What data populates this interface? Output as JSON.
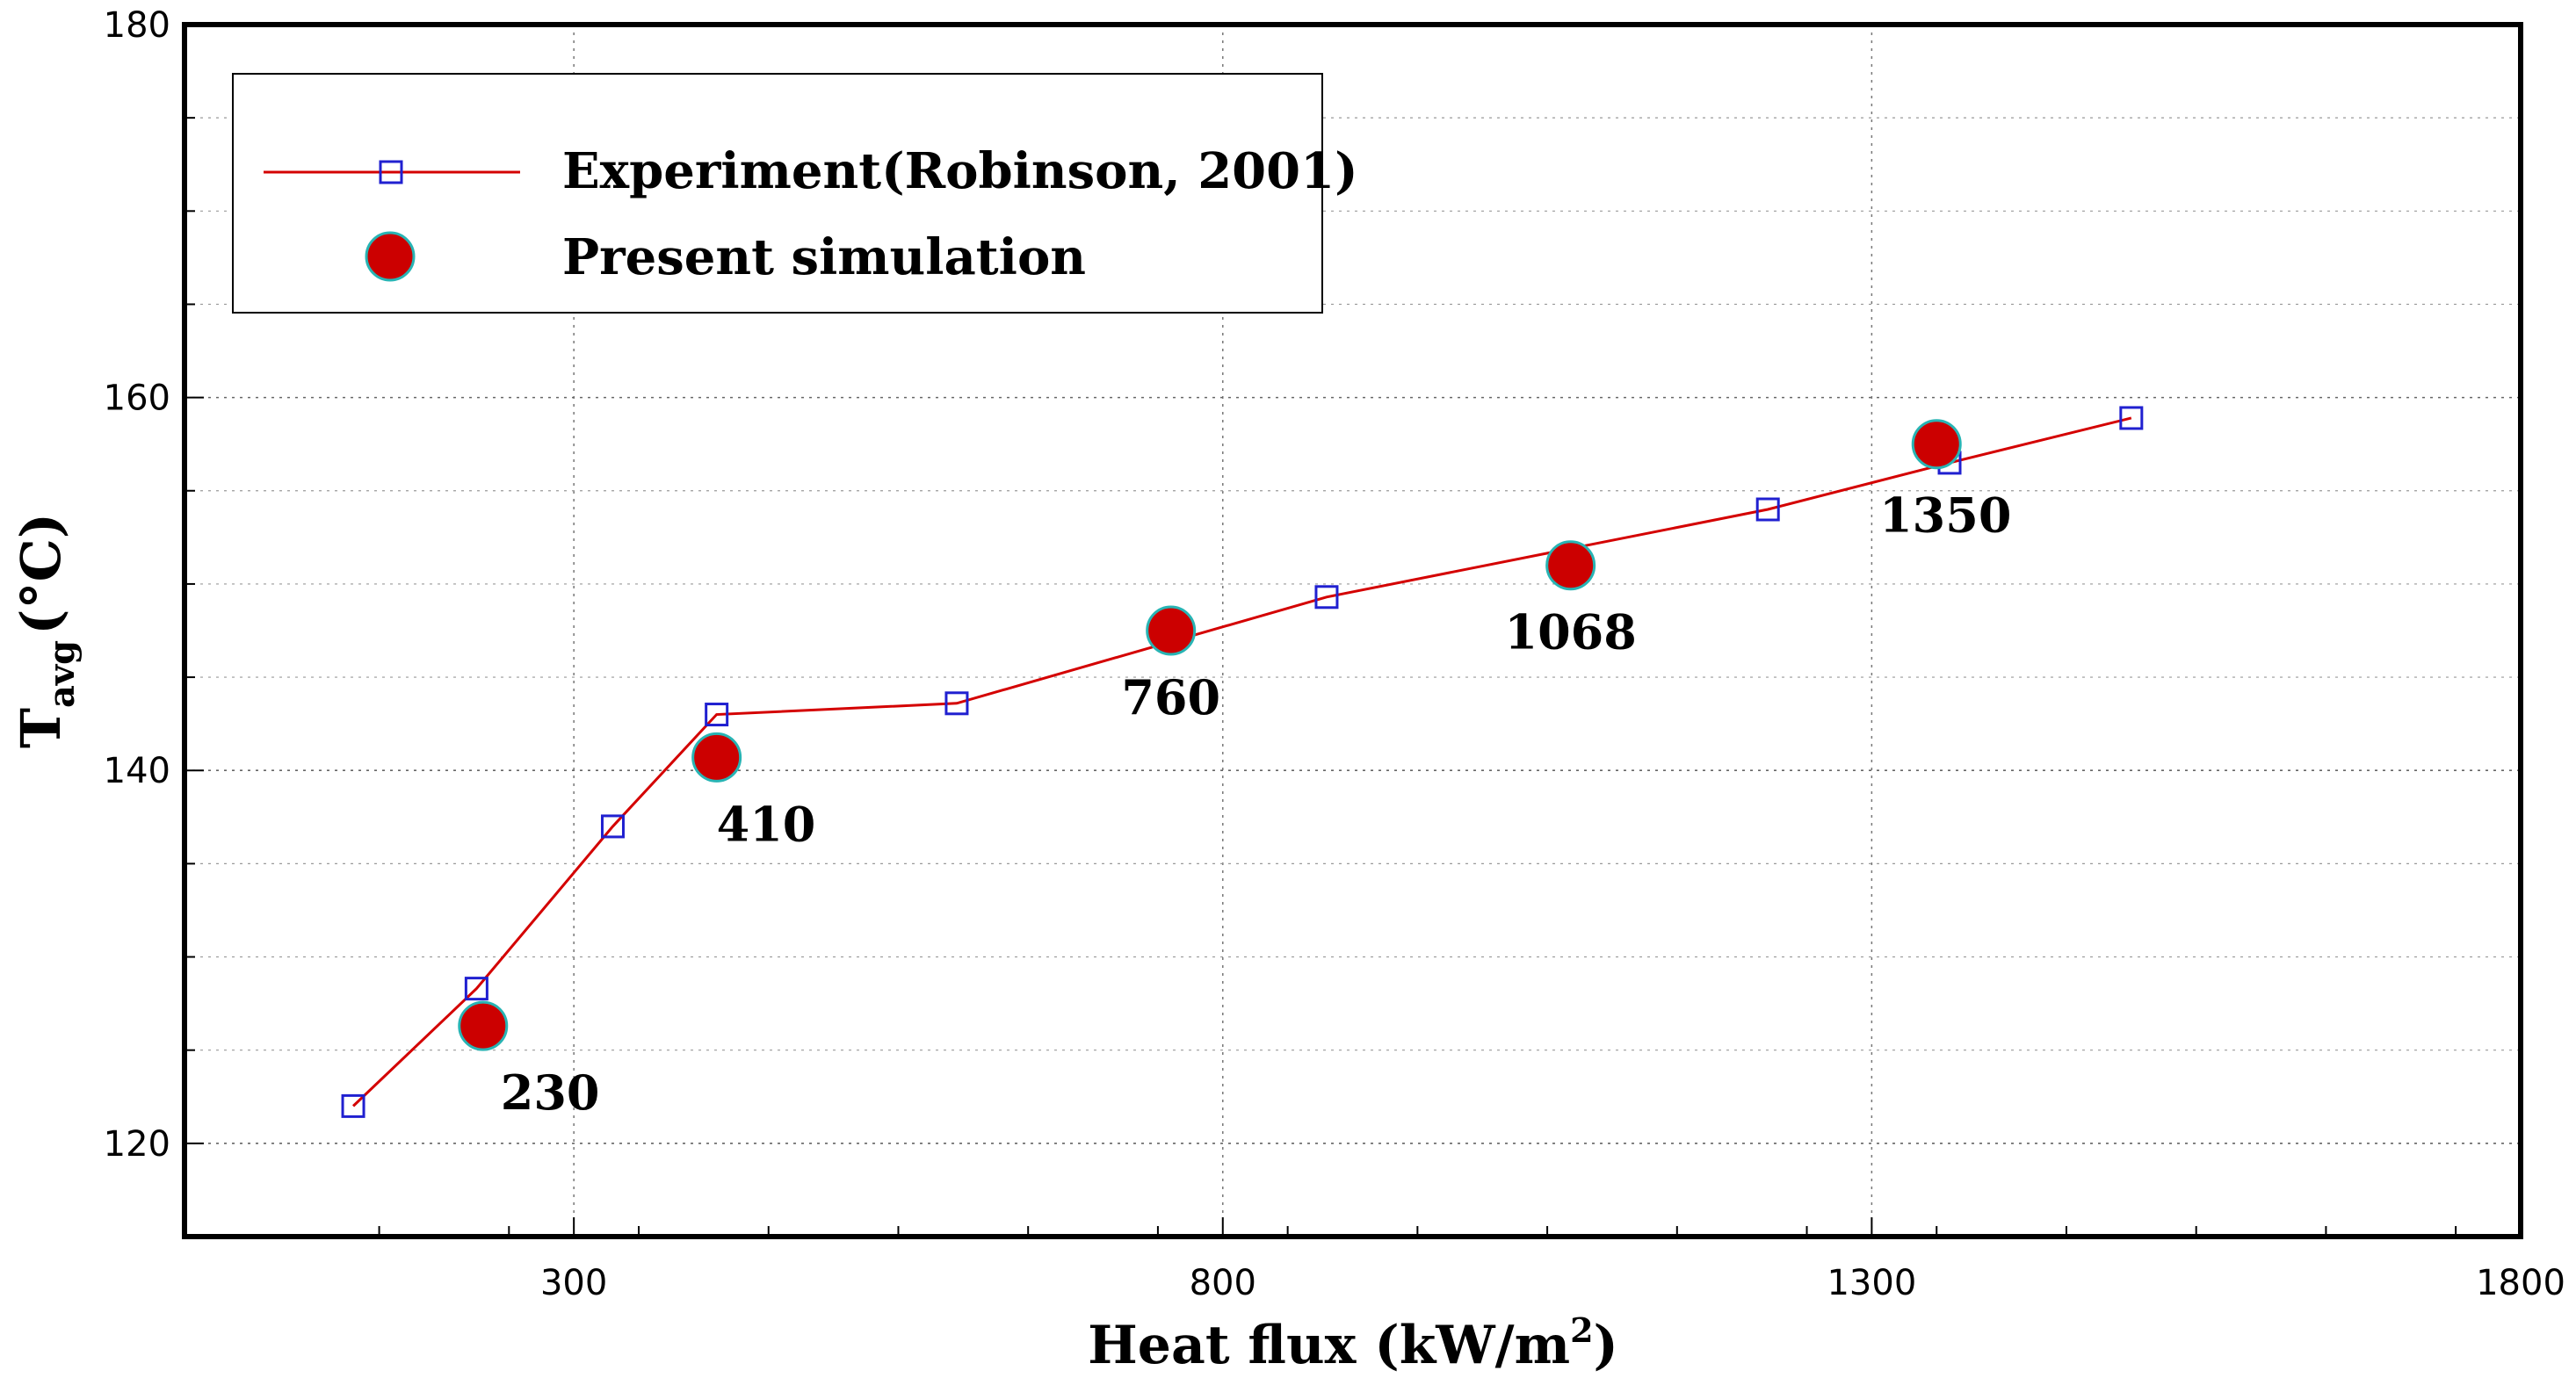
{
  "chart_data": {
    "type": "line",
    "xlabel": "Heat flux (kW/m",
    "xlabel_sup": "2",
    "xlabel_close": ")",
    "ylabel_main": "T",
    "ylabel_sub": "avg",
    "ylabel_unit": "(°C)",
    "xlim": [
      0,
      1800
    ],
    "ylim": [
      115,
      180
    ],
    "xticks": [
      300,
      800,
      1300,
      1800
    ],
    "yticks": [
      120,
      140,
      160,
      180
    ],
    "grid": true,
    "legend_position": "top-left",
    "series": [
      {
        "name": "Experiment(Robinson, 2001)",
        "marker": "open-square",
        "line_color": "#d40000",
        "marker_color": "#2020d0",
        "x": [
          130,
          225,
          330,
          410,
          595,
          880,
          1220,
          1360,
          1500
        ],
        "y": [
          122.0,
          128.3,
          137.0,
          143.0,
          143.6,
          149.3,
          154.0,
          156.5,
          158.9
        ]
      },
      {
        "name": "Present simulation",
        "marker": "filled-circle",
        "marker_color": "#cc0000",
        "marker_edge": "#28b4b4",
        "x": [
          230,
          410,
          760,
          1068,
          1350
        ],
        "y": [
          126.3,
          140.7,
          147.5,
          151.0,
          157.5
        ],
        "labels": [
          "230",
          "410",
          "760",
          "1068",
          "1350"
        ]
      }
    ]
  }
}
